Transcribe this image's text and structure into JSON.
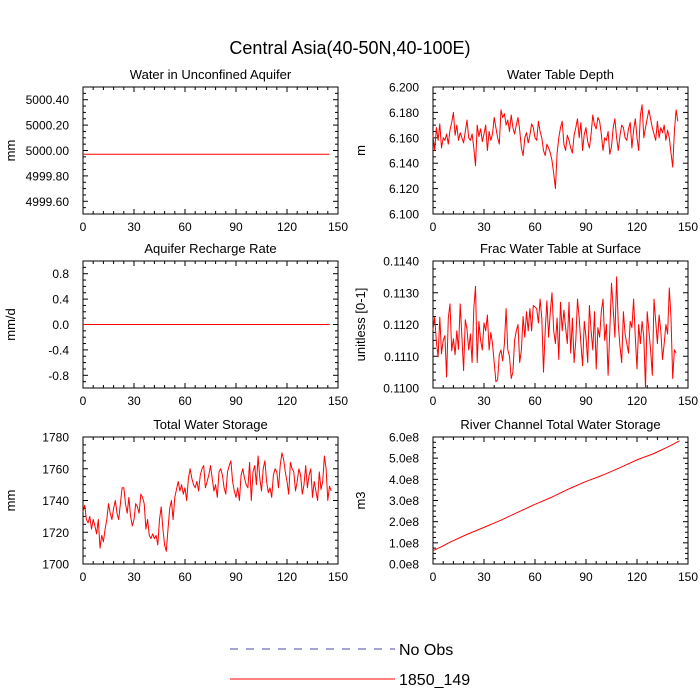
{
  "title": "Central Asia(40-50N,40-100E)",
  "colors": {
    "series": "#ff0000",
    "obs": "#4a4aa8",
    "axis": "#000000"
  },
  "legend": [
    {
      "label": "No Obs",
      "style": "dashed",
      "color": "#4a4aa8"
    },
    {
      "label": "1850_149",
      "style": "solid",
      "color": "#ff0000"
    }
  ],
  "chart_data": [
    {
      "type": "line",
      "title": "Water in Unconfined Aquifer",
      "ylabel": "mm",
      "xlim": [
        0,
        150
      ],
      "ylim": [
        4999.5,
        5000.5
      ],
      "xticks": [
        0,
        30,
        60,
        90,
        120,
        150
      ],
      "xtick_labels": [
        "0",
        "30",
        "60",
        "90",
        "120",
        "150"
      ],
      "yticks": [
        4999.6,
        4999.8,
        5000.0,
        5000.2,
        5000.4
      ],
      "ytick_labels": [
        "4999.60",
        "4999.80",
        "5000.00",
        "5000.20",
        "5000.40"
      ],
      "series": [
        {
          "name": "1850_149",
          "x": [
            0,
            145
          ],
          "y": [
            4999.97,
            4999.97
          ]
        }
      ]
    },
    {
      "type": "line",
      "title": "Water Table Depth",
      "ylabel": "m",
      "xlim": [
        0,
        150
      ],
      "ylim": [
        6.1,
        6.2
      ],
      "xticks": [
        0,
        30,
        60,
        90,
        120,
        150
      ],
      "xtick_labels": [
        "0",
        "30",
        "60",
        "90",
        "120",
        "150"
      ],
      "yticks": [
        6.1,
        6.12,
        6.14,
        6.16,
        6.18,
        6.2
      ],
      "ytick_labels": [
        "6.100",
        "6.120",
        "6.140",
        "6.160",
        "6.180",
        "6.200"
      ],
      "series": [
        {
          "name": "1850_149",
          "x_start": 0,
          "x_step": 1,
          "y": [
            6.162,
            6.15,
            6.168,
            6.158,
            6.171,
            6.152,
            6.16,
            6.158,
            6.163,
            6.155,
            6.166,
            6.172,
            6.18,
            6.162,
            6.17,
            6.158,
            6.164,
            6.16,
            6.156,
            6.165,
            6.174,
            6.16,
            6.158,
            6.163,
            6.152,
            6.138,
            6.17,
            6.161,
            6.167,
            6.157,
            6.163,
            6.17,
            6.15,
            6.165,
            6.158,
            6.163,
            6.176,
            6.168,
            6.16,
            6.155,
            6.182,
            6.176,
            6.179,
            6.17,
            6.174,
            6.165,
            6.178,
            6.168,
            6.163,
            6.17,
            6.176,
            6.166,
            6.152,
            6.146,
            6.16,
            6.164,
            6.156,
            6.162,
            6.171,
            6.168,
            6.16,
            6.158,
            6.173,
            6.165,
            6.16,
            6.15,
            6.146,
            6.155,
            6.152,
            6.148,
            6.142,
            6.132,
            6.12,
            6.148,
            6.16,
            6.168,
            6.173,
            6.155,
            6.15,
            6.162,
            6.158,
            6.152,
            6.148,
            6.162,
            6.168,
            6.175,
            6.16,
            6.172,
            6.15,
            6.163,
            6.168,
            6.157,
            6.152,
            6.163,
            6.178,
            6.17,
            6.167,
            6.176,
            6.173,
            6.163,
            6.15,
            6.16,
            6.158,
            6.165,
            6.147,
            6.153,
            6.168,
            6.175,
            6.16,
            6.15,
            6.162,
            6.17,
            6.168,
            6.16,
            6.158,
            6.167,
            6.172,
            6.152,
            6.166,
            6.175,
            6.16,
            6.15,
            6.178,
            6.186,
            6.16,
            6.168,
            6.175,
            6.182,
            6.175,
            6.168,
            6.163,
            6.158,
            6.173,
            6.16,
            6.168,
            6.164,
            6.17,
            6.158,
            6.166,
            6.16,
            6.148,
            6.137,
            6.165,
            6.182,
            6.173
          ]
        }
      ]
    },
    {
      "type": "line",
      "title": "Aquifer Recharge Rate",
      "ylabel": "mm/d",
      "xlim": [
        0,
        150
      ],
      "ylim": [
        -1.0,
        1.0
      ],
      "xticks": [
        0,
        30,
        60,
        90,
        120,
        150
      ],
      "xtick_labels": [
        "0",
        "30",
        "60",
        "90",
        "120",
        "150"
      ],
      "yticks": [
        -0.8,
        -0.4,
        0.0,
        0.4,
        0.8
      ],
      "ytick_labels": [
        "-0.8",
        "-0.4",
        "0.0",
        "0.4",
        "0.8"
      ],
      "series": [
        {
          "name": "1850_149",
          "x": [
            0,
            145
          ],
          "y": [
            0.0,
            0.0
          ]
        }
      ]
    },
    {
      "type": "line",
      "title": "Frac Water Table at Surface",
      "ylabel": "unitless [0-1]",
      "xlim": [
        0,
        150
      ],
      "ylim": [
        0.11,
        0.114
      ],
      "xticks": [
        0,
        30,
        60,
        90,
        120,
        150
      ],
      "xtick_labels": [
        "0",
        "30",
        "60",
        "90",
        "120",
        "150"
      ],
      "yticks": [
        0.11,
        0.111,
        0.112,
        0.113,
        0.114
      ],
      "ytick_labels": [
        "0.1100",
        "0.1110",
        "0.1120",
        "0.1130",
        "0.1140"
      ],
      "series": [
        {
          "name": "1850_149",
          "x_start": 0,
          "x_step": 1,
          "y": [
            0.11183,
            0.11222,
            0.11145,
            0.11098,
            0.11223,
            0.11108,
            0.1115,
            0.11165,
            0.11035,
            0.1122,
            0.11265,
            0.11117,
            0.11155,
            0.11105,
            0.1118,
            0.11122,
            0.11265,
            0.1116,
            0.11055,
            0.11215,
            0.11185,
            0.1112,
            0.1117,
            0.1108,
            0.1125,
            0.1132,
            0.1108,
            0.1121,
            0.1115,
            0.1112,
            0.11205,
            0.1118,
            0.1123,
            0.1112,
            0.11175,
            0.1114,
            0.1108,
            0.1102,
            0.11025,
            0.11105,
            0.1112,
            0.11085,
            0.1114,
            0.1125,
            0.1112,
            0.111,
            0.1103,
            0.1105,
            0.1115,
            0.1118,
            0.112,
            0.1108,
            0.1112,
            0.11225,
            0.1116,
            0.1124,
            0.1118,
            0.1125,
            0.1118,
            0.1126,
            0.11255,
            0.1125,
            0.11205,
            0.1128,
            0.1122,
            0.1105,
            0.1118,
            0.11275,
            0.1116,
            0.1124,
            0.113,
            0.1118,
            0.1114,
            0.1122,
            0.1109,
            0.1127,
            0.1118,
            0.11245,
            0.1119,
            0.1114,
            0.1127,
            0.1111,
            0.1122,
            0.1108,
            0.1115,
            0.1128,
            0.1122,
            0.1114,
            0.1107,
            0.1121,
            0.1116,
            0.1108,
            0.1126,
            0.1118,
            0.1112,
            0.1124,
            0.1106,
            0.1119,
            0.1116,
            0.1124,
            0.1128,
            0.1115,
            0.112,
            0.1104,
            0.1118,
            0.1133,
            0.1125,
            0.1116,
            0.1135,
            0.112,
            0.1113,
            0.1108,
            0.1124,
            0.1117,
            0.1114,
            0.1111,
            0.1121,
            0.1119,
            0.1128,
            0.1116,
            0.1106,
            0.112,
            0.1114,
            0.1121,
            0.1116,
            0.11,
            0.1124,
            0.1118,
            0.1112,
            0.1104,
            0.1128,
            0.1121,
            0.1114,
            0.1123,
            0.1118,
            0.1109,
            0.1114,
            0.112,
            0.1117,
            0.11315,
            0.1122,
            0.1103,
            0.1112,
            0.1111
          ]
        }
      ]
    },
    {
      "type": "line",
      "title": "Total Water Storage",
      "ylabel": "mm",
      "xlim": [
        0,
        150
      ],
      "ylim": [
        1700,
        1780
      ],
      "xticks": [
        0,
        30,
        60,
        90,
        120,
        150
      ],
      "xtick_labels": [
        "0",
        "30",
        "60",
        "90",
        "120",
        "150"
      ],
      "yticks": [
        1700,
        1720,
        1740,
        1760,
        1780
      ],
      "ytick_labels": [
        "1700",
        "1720",
        "1740",
        "1760",
        "1780"
      ],
      "series": [
        {
          "name": "1850_149",
          "x_start": 0,
          "x_step": 1,
          "y": [
            1733,
            1737,
            1728,
            1726,
            1730,
            1722,
            1728,
            1724,
            1719,
            1728,
            1710,
            1718,
            1714,
            1722,
            1728,
            1738,
            1732,
            1728,
            1735,
            1740,
            1732,
            1728,
            1738,
            1748,
            1748,
            1738,
            1732,
            1742,
            1730,
            1724,
            1728,
            1738,
            1736,
            1732,
            1744,
            1742,
            1738,
            1722,
            1728,
            1718,
            1716,
            1719,
            1716,
            1718,
            1712,
            1728,
            1736,
            1722,
            1712,
            1708,
            1722,
            1735,
            1740,
            1728,
            1742,
            1747,
            1752,
            1746,
            1750,
            1744,
            1748,
            1740,
            1754,
            1760,
            1754,
            1750,
            1748,
            1752,
            1746,
            1756,
            1760,
            1762,
            1748,
            1752,
            1756,
            1762,
            1754,
            1746,
            1750,
            1742,
            1758,
            1760,
            1756,
            1748,
            1744,
            1758,
            1762,
            1765,
            1752,
            1746,
            1742,
            1748,
            1740,
            1756,
            1760,
            1754,
            1750,
            1748,
            1764,
            1740,
            1758,
            1762,
            1750,
            1768,
            1754,
            1746,
            1760,
            1765,
            1752,
            1745,
            1748,
            1742,
            1756,
            1760,
            1758,
            1748,
            1762,
            1770,
            1766,
            1758,
            1752,
            1744,
            1764,
            1760,
            1758,
            1746,
            1752,
            1760,
            1756,
            1744,
            1750,
            1762,
            1748,
            1756,
            1760,
            1742,
            1752,
            1746,
            1740,
            1758,
            1747,
            1752,
            1768,
            1760,
            1740,
            1749,
            1746
          ]
        }
      ]
    },
    {
      "type": "line",
      "title": "River Channel Total Water Storage",
      "ylabel": "m3",
      "xlim": [
        0,
        150
      ],
      "ylim": [
        0,
        600000000.0
      ],
      "xticks": [
        0,
        30,
        60,
        90,
        120,
        150
      ],
      "xtick_labels": [
        "0",
        "30",
        "60",
        "90",
        "120",
        "150"
      ],
      "yticks": [
        0,
        100000000.0,
        200000000.0,
        300000000.0,
        400000000.0,
        500000000.0,
        600000000.0
      ],
      "ytick_labels": [
        "0.0e8",
        "1.0e8",
        "2.0e8",
        "3.0e8",
        "4.0e8",
        "5.0e8",
        "6.0e8"
      ],
      "series": [
        {
          "name": "1850_149",
          "x": [
            0,
            5,
            10,
            20,
            30,
            40,
            50,
            60,
            70,
            80,
            90,
            100,
            110,
            120,
            130,
            140,
            145
          ],
          "y": [
            63000000.0,
            82000000.0,
            103000000.0,
            140000000.0,
            173000000.0,
            207000000.0,
            245000000.0,
            282000000.0,
            316000000.0,
            355000000.0,
            390000000.0,
            420000000.0,
            455000000.0,
            492000000.0,
            522000000.0,
            560000000.0,
            582000000.0
          ]
        }
      ]
    }
  ]
}
